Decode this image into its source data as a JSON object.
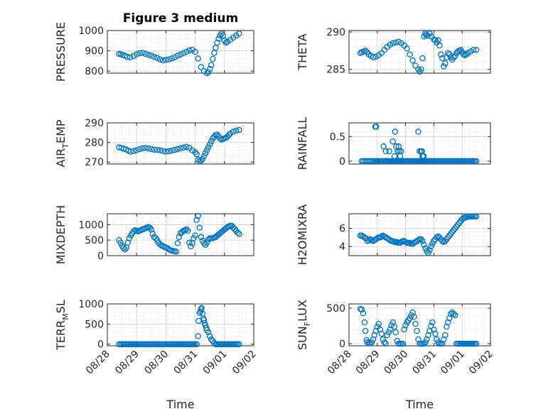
{
  "colors": {
    "marker": "#0072BD",
    "axis": "#262626",
    "grid": "#d0d0d0",
    "minor_grid": "#e0e0e0"
  },
  "chart_data": [
    {
      "type": "scatter",
      "title": "Figure 3 medium",
      "ylabel_main": "PRESSURE",
      "ylabel_sub": "",
      "ylim": [
        790,
        1000
      ],
      "yticks": [
        800,
        900,
        1000
      ],
      "ytick_labels": [
        "800",
        "900",
        "1000"
      ],
      "grid": true,
      "minor_grid": true,
      "x": [
        0.4,
        0.46,
        0.52,
        0.6,
        0.68,
        0.78,
        0.9,
        1.0,
        1.1,
        1.2,
        1.3,
        1.4,
        1.5,
        1.6,
        1.7,
        1.8,
        1.9,
        2.0,
        2.1,
        2.2,
        2.3,
        2.4,
        2.5,
        2.6,
        2.7,
        2.8,
        2.9,
        3.0,
        3.1,
        3.2,
        3.3,
        3.4,
        3.45,
        3.5,
        3.55,
        3.6,
        3.65,
        3.7,
        3.75,
        3.8,
        3.85,
        3.9,
        3.95,
        4.0,
        4.05,
        4.1,
        4.2,
        4.3,
        4.4,
        4.5
      ],
      "y": [
        885,
        883,
        880,
        876,
        870,
        868,
        875,
        883,
        888,
        890,
        885,
        880,
        876,
        870,
        865,
        858,
        853,
        855,
        858,
        862,
        868,
        876,
        882,
        888,
        895,
        902,
        905,
        895,
        862,
        820,
        800,
        790,
        795,
        810,
        830,
        860,
        890,
        915,
        940,
        960,
        975,
        985,
        975,
        950,
        940,
        945,
        955,
        965,
        975,
        985
      ]
    },
    {
      "type": "scatter",
      "title": "",
      "ylabel_main": "THETA",
      "ylabel_sub": "",
      "ylim": [
        284.5,
        290.2
      ],
      "yticks": [
        285,
        290
      ],
      "ytick_labels": [
        "285",
        "290"
      ],
      "grid": true,
      "minor_grid": true,
      "x": [
        0.4,
        0.46,
        0.52,
        0.58,
        0.64,
        0.7,
        0.78,
        0.86,
        0.95,
        1.05,
        1.15,
        1.25,
        1.35,
        1.45,
        1.55,
        1.65,
        1.75,
        1.85,
        1.95,
        2.05,
        2.15,
        2.25,
        2.35,
        2.45,
        2.5,
        2.55,
        2.6,
        2.65,
        2.7,
        2.72,
        2.78,
        2.85,
        2.92,
        3.0,
        3.05,
        3.1,
        3.15,
        3.2,
        3.25,
        3.3,
        3.35,
        3.4,
        3.45,
        3.5,
        3.55,
        3.6,
        3.65,
        3.7,
        3.75,
        3.8,
        3.85,
        3.9,
        3.95,
        4.0,
        4.05,
        4.1,
        4.15,
        4.2,
        4.3,
        4.4,
        4.5
      ],
      "y": [
        287.2,
        287.3,
        287.4,
        287.5,
        287.3,
        287.0,
        286.8,
        286.6,
        286.7,
        286.9,
        287.2,
        287.6,
        288.0,
        288.3,
        288.5,
        288.6,
        288.7,
        288.5,
        288.2,
        287.8,
        287.0,
        286.2,
        285.5,
        285.0,
        284.7,
        285.0,
        286.5,
        289.4,
        289.8,
        289.6,
        289.5,
        289.8,
        289.4,
        289.0,
        288.9,
        288.6,
        288.9,
        288.2,
        287.0,
        286.5,
        285.4,
        285.8,
        286.6,
        287.2,
        287.0,
        286.6,
        286.3,
        286.6,
        286.8,
        287.2,
        287.4,
        287.5,
        287.6,
        287.3,
        287.0,
        286.9,
        287.0,
        287.2,
        287.4,
        287.6,
        287.6
      ]
    },
    {
      "type": "scatter",
      "title": "",
      "ylabel_main": "AIR",
      "ylabel_sub": "T",
      "ylabel_rest": "EMP",
      "ylim": [
        269,
        290
      ],
      "yticks": [
        270,
        280,
        290
      ],
      "ytick_labels": [
        "270",
        "280",
        "290"
      ],
      "grid": true,
      "minor_grid": true,
      "x": [
        0.4,
        0.48,
        0.56,
        0.64,
        0.72,
        0.8,
        0.9,
        1.0,
        1.1,
        1.2,
        1.3,
        1.4,
        1.5,
        1.6,
        1.7,
        1.8,
        1.9,
        2.0,
        2.1,
        2.2,
        2.3,
        2.4,
        2.5,
        2.6,
        2.7,
        2.8,
        2.9,
        3.0,
        3.05,
        3.1,
        3.15,
        3.2,
        3.25,
        3.3,
        3.35,
        3.4,
        3.45,
        3.5,
        3.55,
        3.6,
        3.65,
        3.7,
        3.75,
        3.8,
        3.85,
        3.9,
        3.95,
        4.0,
        4.05,
        4.1,
        4.15,
        4.2,
        4.3,
        4.4,
        4.5
      ],
      "y": [
        277.5,
        277.2,
        276.8,
        276.4,
        275.8,
        275.3,
        275.6,
        276.0,
        276.6,
        277.0,
        277.2,
        277.0,
        276.6,
        276.3,
        276.2,
        276.0,
        275.7,
        275.3,
        275.5,
        275.8,
        276.2,
        276.6,
        277.0,
        277.4,
        277.8,
        277.2,
        276.0,
        275.0,
        274.0,
        271.2,
        270.5,
        270.8,
        271.5,
        273.0,
        274.5,
        276.0,
        277.5,
        279.0,
        280.5,
        282.0,
        283.0,
        283.8,
        284.0,
        283.2,
        282.0,
        281.5,
        281.8,
        282.0,
        282.4,
        283.0,
        283.8,
        284.6,
        285.5,
        286.0,
        286.4
      ]
    },
    {
      "type": "scatter",
      "title": "",
      "ylabel_main": "RAINFALL",
      "ylabel_sub": "",
      "ylim": [
        -0.06,
        0.78
      ],
      "yticks": [
        0,
        0.5
      ],
      "ytick_labels": [
        "0",
        "0.5"
      ],
      "grid": true,
      "minor_grid": true,
      "x": [
        0.45,
        0.5,
        0.56,
        0.62,
        0.68,
        0.74,
        0.8,
        0.86,
        0.9,
        0.95,
        0.98,
        1.0,
        1.04,
        1.1,
        1.15,
        1.2,
        1.25,
        1.3,
        1.32,
        1.35,
        1.38,
        1.42,
        1.45,
        1.5,
        1.52,
        1.55,
        1.58,
        1.62,
        1.65,
        1.68,
        1.7,
        1.72,
        1.75,
        1.78,
        1.8,
        1.82,
        1.85,
        1.88,
        1.9,
        1.95,
        2.0,
        2.05,
        2.1,
        2.15,
        2.2,
        2.25,
        2.3,
        2.35,
        2.4,
        2.45,
        2.5,
        2.52,
        2.55,
        2.58,
        2.6,
        2.62,
        2.65,
        2.68,
        2.7,
        2.75,
        2.8,
        2.85,
        2.9,
        2.95,
        3.0,
        3.05,
        3.1,
        3.15,
        3.2,
        3.25,
        3.3,
        3.35,
        3.4,
        3.45,
        3.5,
        3.55,
        3.6,
        3.65,
        3.7,
        3.75,
        3.8,
        3.85,
        3.9,
        3.95,
        4.0,
        4.05,
        4.1,
        4.15,
        4.2,
        4.25,
        4.3,
        4.35,
        4.4,
        4.45,
        4.5,
        0.93,
        0.96,
        1.22,
        1.3,
        1.42,
        1.55,
        1.61,
        1.63,
        1.67,
        1.72,
        1.75,
        1.78,
        1.81,
        1.84,
        2.45,
        2.5,
        2.55,
        2.58,
        2.6,
        2.62,
        2.64
      ],
      "y": [
        0,
        0,
        0,
        0,
        0,
        0,
        0,
        0,
        0,
        0,
        0,
        0,
        0,
        0,
        0,
        0,
        0,
        0,
        0,
        0,
        0,
        0,
        0,
        0,
        0,
        0,
        0,
        0,
        0,
        0,
        0,
        0,
        0,
        0,
        0,
        0,
        0,
        0,
        0,
        0,
        0,
        0,
        0,
        0,
        0,
        0,
        0,
        0,
        0,
        0,
        0,
        0,
        0,
        0,
        0,
        0,
        0,
        0,
        0,
        0,
        0,
        0,
        0,
        0,
        0,
        0,
        0,
        0,
        0,
        0,
        0,
        0,
        0,
        0,
        0,
        0,
        0,
        0,
        0,
        0,
        0,
        0,
        0,
        0,
        0,
        0,
        0,
        0,
        0,
        0,
        0,
        0,
        0,
        0,
        0,
        0.7,
        0.7,
        0.3,
        0.2,
        0.2,
        0.4,
        0.1,
        0.6,
        0.3,
        0.2,
        0.3,
        0.2,
        0.1,
        0.2,
        0.6,
        0.2,
        0.2,
        0.2,
        0.1,
        0.1,
        0.1
      ]
    },
    {
      "type": "scatter",
      "title": "",
      "ylabel_main": "MIXDEPTH",
      "ylabel_sub": "",
      "ylim": [
        0,
        1350
      ],
      "yticks": [
        0,
        500,
        1000
      ],
      "ytick_labels": [
        "0",
        "500",
        "1000"
      ],
      "grid": true,
      "minor_grid": true,
      "x": [
        0.4,
        0.45,
        0.5,
        0.55,
        0.6,
        0.65,
        0.7,
        0.75,
        0.8,
        0.85,
        0.9,
        0.95,
        1.0,
        1.05,
        1.1,
        1.15,
        1.2,
        1.25,
        1.3,
        1.35,
        1.4,
        1.45,
        1.5,
        1.55,
        1.6,
        1.65,
        1.7,
        1.75,
        1.8,
        1.85,
        1.9,
        1.95,
        2.0,
        2.05,
        2.1,
        2.15,
        2.2,
        2.25,
        2.3,
        2.35,
        2.4,
        2.45,
        2.5,
        2.55,
        2.6,
        2.65,
        2.7,
        2.75,
        2.8,
        2.85,
        2.9,
        2.95,
        3.0,
        3.05,
        3.1,
        3.15,
        3.2,
        3.25,
        3.3,
        3.35,
        3.4,
        3.45,
        3.5,
        3.55,
        3.6,
        3.65,
        3.7,
        3.75,
        3.8,
        3.85,
        3.9,
        3.95,
        4.0,
        4.05,
        4.1,
        4.15,
        4.2,
        4.25,
        4.3,
        4.35,
        4.4,
        4.45,
        4.5
      ],
      "y": [
        500,
        420,
        320,
        250,
        200,
        260,
        420,
        560,
        650,
        720,
        780,
        820,
        800,
        780,
        800,
        820,
        850,
        860,
        880,
        900,
        920,
        900,
        840,
        700,
        600,
        560,
        500,
        420,
        360,
        330,
        310,
        280,
        260,
        240,
        200,
        180,
        160,
        150,
        140,
        130,
        400,
        600,
        720,
        760,
        800,
        820,
        850,
        800,
        420,
        300,
        400,
        560,
        650,
        1150,
        1280,
        900,
        600,
        480,
        400,
        350,
        420,
        520,
        560,
        560,
        560,
        580,
        600,
        640,
        680,
        720,
        760,
        800,
        840,
        880,
        920,
        940,
        960,
        960,
        900,
        850,
        800,
        740,
        700
      ]
    },
    {
      "type": "scatter",
      "title": "",
      "ylabel_main": "H2OMIXRA",
      "ylabel_sub": "",
      "ylim": [
        3.0,
        7.6
      ],
      "yticks": [
        4,
        6
      ],
      "ytick_labels": [
        "4",
        "6"
      ],
      "grid": true,
      "minor_grid": true,
      "x": [
        0.4,
        0.45,
        0.5,
        0.55,
        0.6,
        0.65,
        0.7,
        0.75,
        0.8,
        0.85,
        0.9,
        0.95,
        1.0,
        1.05,
        1.1,
        1.15,
        1.2,
        1.25,
        1.3,
        1.35,
        1.4,
        1.45,
        1.5,
        1.55,
        1.6,
        1.65,
        1.7,
        1.75,
        1.8,
        1.85,
        1.9,
        1.95,
        2.0,
        2.05,
        2.1,
        2.15,
        2.2,
        2.25,
        2.3,
        2.35,
        2.4,
        2.45,
        2.5,
        2.55,
        2.6,
        2.65,
        2.7,
        2.75,
        2.8,
        2.85,
        2.9,
        2.95,
        3.0,
        3.05,
        3.1,
        3.15,
        3.2,
        3.25,
        3.3,
        3.35,
        3.4,
        3.45,
        3.5,
        3.55,
        3.6,
        3.65,
        3.7,
        3.75,
        3.8,
        3.85,
        3.9,
        3.95,
        4.0,
        4.05,
        4.1,
        4.15,
        4.2,
        4.25,
        4.3,
        4.35,
        4.4,
        4.45,
        4.5
      ],
      "y": [
        5.2,
        5.2,
        5.1,
        5.0,
        4.9,
        4.6,
        4.7,
        4.8,
        4.7,
        4.6,
        4.7,
        4.8,
        4.9,
        5.0,
        5.0,
        5.1,
        5.2,
        5.1,
        5.0,
        4.9,
        4.8,
        4.7,
        4.6,
        4.6,
        4.5,
        4.5,
        4.5,
        4.4,
        4.4,
        4.5,
        4.6,
        4.6,
        4.5,
        4.4,
        4.4,
        4.4,
        4.3,
        4.3,
        4.4,
        4.5,
        4.6,
        4.7,
        4.8,
        4.8,
        4.6,
        4.2,
        3.8,
        3.5,
        3.3,
        3.6,
        4.0,
        4.3,
        4.6,
        4.8,
        5.0,
        5.1,
        5.0,
        4.8,
        4.6,
        4.5,
        4.6,
        4.8,
        5.0,
        5.2,
        5.4,
        5.6,
        5.8,
        6.0,
        6.2,
        6.4,
        6.6,
        6.8,
        7.0,
        7.1,
        7.2,
        7.2,
        7.3,
        7.3,
        7.3,
        7.3,
        7.3,
        7.3,
        7.3
      ]
    },
    {
      "type": "scatter",
      "title": "",
      "ylabel_main": "TERR",
      "ylabel_sub": "M",
      "ylabel_rest": "SL",
      "ylim": [
        -40,
        1000
      ],
      "yticks": [
        0,
        500,
        1000
      ],
      "ytick_labels": [
        "0",
        "500",
        "1000"
      ],
      "grid": true,
      "minor_grid": true,
      "x": [
        0.4,
        0.45,
        0.5,
        0.55,
        0.6,
        0.65,
        0.7,
        0.75,
        0.8,
        0.85,
        0.9,
        0.95,
        1.0,
        1.05,
        1.1,
        1.15,
        1.2,
        1.25,
        1.3,
        1.35,
        1.4,
        1.45,
        1.5,
        1.55,
        1.6,
        1.65,
        1.7,
        1.75,
        1.8,
        1.85,
        1.9,
        1.95,
        2.0,
        2.05,
        2.1,
        2.15,
        2.2,
        2.25,
        2.3,
        2.35,
        2.4,
        2.45,
        2.5,
        2.55,
        2.6,
        2.65,
        2.7,
        2.75,
        2.8,
        2.85,
        2.9,
        2.95,
        3.0,
        3.05,
        3.1,
        3.12,
        3.15,
        3.18,
        3.2,
        3.22,
        3.25,
        3.28,
        3.3,
        3.32,
        3.35,
        3.38,
        3.4,
        3.45,
        3.5,
        3.55,
        3.6,
        3.65,
        3.7,
        3.75,
        3.8,
        3.85,
        3.9,
        3.95,
        4.0,
        4.05,
        4.1,
        4.15,
        4.2,
        4.25,
        4.3,
        4.35,
        4.4,
        4.45,
        4.5
      ],
      "y": [
        0,
        0,
        0,
        0,
        0,
        0,
        0,
        0,
        0,
        0,
        0,
        0,
        0,
        0,
        0,
        0,
        0,
        0,
        0,
        0,
        0,
        0,
        0,
        0,
        0,
        0,
        0,
        0,
        0,
        0,
        0,
        0,
        0,
        0,
        0,
        0,
        0,
        0,
        0,
        0,
        0,
        0,
        0,
        0,
        0,
        0,
        0,
        0,
        0,
        0,
        0,
        0,
        0,
        0,
        200,
        580,
        780,
        820,
        870,
        900,
        760,
        640,
        600,
        520,
        470,
        400,
        350,
        300,
        200,
        120,
        80,
        30,
        0,
        0,
        0,
        0,
        0,
        0,
        0,
        0,
        0,
        0,
        0,
        0,
        0,
        0,
        0,
        0,
        0
      ]
    },
    {
      "type": "scatter",
      "title": "",
      "ylabel_main": "SUN",
      "ylabel_sub": "F",
      "ylabel_rest": "LUX",
      "ylim": [
        -30,
        560
      ],
      "yticks": [
        0,
        500
      ],
      "ytick_labels": [
        "0",
        "500"
      ],
      "grid": true,
      "minor_grid": true,
      "x": [
        0.4,
        0.45,
        0.5,
        0.55,
        0.58,
        0.62,
        0.65,
        0.7,
        0.75,
        0.8,
        0.85,
        0.9,
        0.95,
        1.0,
        1.05,
        1.1,
        1.15,
        1.2,
        1.25,
        1.3,
        1.35,
        1.4,
        1.45,
        1.5,
        1.55,
        1.6,
        1.65,
        1.7,
        1.75,
        1.8,
        1.85,
        1.9,
        1.95,
        2.0,
        2.05,
        2.1,
        2.15,
        2.2,
        2.25,
        2.3,
        2.35,
        2.4,
        2.45,
        2.5,
        2.55,
        2.6,
        2.65,
        2.7,
        2.75,
        2.8,
        2.85,
        2.9,
        2.95,
        3.0,
        3.05,
        3.1,
        3.15,
        3.2,
        3.25,
        3.3,
        3.35,
        3.4,
        3.45,
        3.5,
        3.55,
        3.6,
        3.65,
        3.7,
        3.75,
        3.8,
        3.85,
        3.9,
        3.95,
        4.0,
        4.05,
        4.1,
        4.15,
        4.2,
        4.25,
        4.3,
        4.35,
        4.4,
        4.45,
        4.5
      ],
      "y": [
        490,
        480,
        430,
        300,
        180,
        50,
        20,
        10,
        5,
        20,
        60,
        120,
        180,
        240,
        280,
        200,
        140,
        60,
        20,
        0,
        120,
        160,
        200,
        260,
        300,
        240,
        160,
        40,
        0,
        0,
        0,
        0,
        200,
        260,
        300,
        330,
        360,
        400,
        440,
        380,
        280,
        180,
        60,
        0,
        0,
        0,
        0,
        20,
        60,
        120,
        180,
        250,
        300,
        200,
        140,
        60,
        20,
        0,
        0,
        0,
        60,
        120,
        240,
        300,
        360,
        420,
        440,
        420,
        400,
        0,
        0,
        0,
        0,
        0,
        0,
        0,
        0,
        0,
        0,
        0,
        0,
        0,
        0,
        0
      ]
    }
  ],
  "xaxis": {
    "xlim": [
      0,
      5
    ],
    "ticks": [
      0,
      1,
      2,
      3,
      4,
      5
    ],
    "tick_labels": [
      "08/28",
      "08/29",
      "08/30",
      "08/31",
      "09/01",
      "09/02"
    ],
    "label": "Time"
  }
}
